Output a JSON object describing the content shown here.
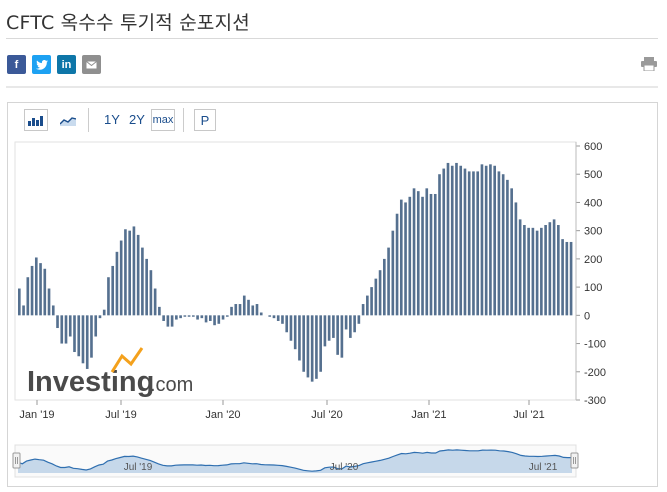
{
  "page": {
    "title": "CFTC 옥수수 투기적 순포지션"
  },
  "share": {
    "facebook": "f",
    "twitter": "t",
    "linkedin": "in",
    "email": "✉"
  },
  "toolbar": {
    "range_1y": "1Y",
    "range_2y": "2Y",
    "range_max": "max",
    "pin": "P"
  },
  "icons": [
    "bar-chart-icon",
    "area-chart-icon",
    "print-icon",
    "facebook-icon",
    "twitter-icon",
    "linkedin-icon",
    "email-icon"
  ],
  "watermark": {
    "brand": "Investing",
    "suffix": ".com"
  },
  "colors": {
    "bar": "#55708f",
    "navigator_fill": "#c6d8ea",
    "navigator_line": "#2f6fb0"
  },
  "chart_data": {
    "type": "bar",
    "ylim": [
      -300,
      600
    ],
    "yticks": [
      "600",
      "500",
      "400",
      "300",
      "200",
      "100",
      "0",
      "-100",
      "-200",
      "-300"
    ],
    "xticks": [
      "Jan '19",
      "Jul '19",
      "Jan '20",
      "Jul '20",
      "Jan '21",
      "Jul '21"
    ],
    "values": [
      95,
      35,
      135,
      175,
      205,
      185,
      165,
      95,
      35,
      -45,
      -100,
      -100,
      -75,
      -130,
      -145,
      -170,
      -190,
      -150,
      -75,
      -10,
      20,
      135,
      175,
      225,
      265,
      305,
      300,
      315,
      285,
      240,
      200,
      160,
      95,
      30,
      -20,
      -40,
      -40,
      -15,
      -10,
      -5,
      -5,
      -5,
      -15,
      -10,
      -25,
      -20,
      -35,
      -30,
      -15,
      -5,
      30,
      40,
      40,
      70,
      55,
      35,
      40,
      10,
      0,
      -5,
      -10,
      -20,
      -30,
      -60,
      -90,
      -120,
      -160,
      -200,
      -220,
      -235,
      -225,
      -200,
      -110,
      -90,
      -80,
      -140,
      -150,
      -50,
      -80,
      -60,
      -30,
      40,
      70,
      100,
      130,
      160,
      200,
      240,
      300,
      360,
      410,
      400,
      420,
      450,
      440,
      420,
      450,
      430,
      430,
      500,
      520,
      540,
      530,
      540,
      530,
      520,
      510,
      510,
      510,
      535,
      530,
      535,
      530,
      510,
      500,
      480,
      450,
      400,
      340,
      320,
      310,
      310,
      300,
      310,
      320,
      330,
      340,
      320,
      270,
      260,
      260
    ],
    "navigator_labels": [
      "Jul '19",
      "Jul '20",
      "Jul '21"
    ]
  }
}
